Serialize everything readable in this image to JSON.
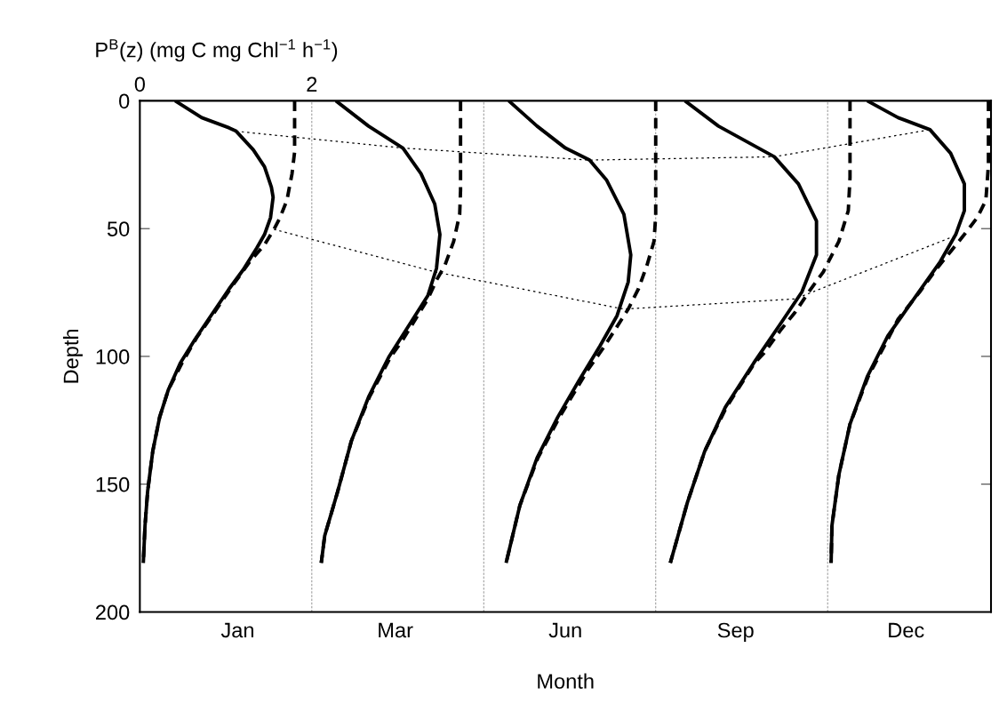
{
  "chart_data": {
    "type": "line",
    "xlabel": "P$^{B}$(z) (mg C mg Chl$^{−1}$ h$^{−1}$)",
    "ylabel": "Depth",
    "annotations": [
      "Jan",
      "Mar",
      "Jun",
      "Sep",
      "Dec",
      "Month"
    ],
    "xlim": [
      0,
      9.9
    ],
    "xticks": [
      0,
      2
    ],
    "ylim": [
      200,
      0
    ],
    "yticks": [
      0,
      50,
      100,
      150,
      200
    ],
    "grid": false,
    "marker": "none",
    "ref_lines": [
      {
        "axis": "x",
        "value": 2,
        "label": null,
        "color": "#808080",
        "line_style": "dashed"
      },
      {
        "axis": "x",
        "value": 4,
        "label": null,
        "color": "#808080",
        "line_style": "dashed"
      },
      {
        "axis": "x",
        "value": 6,
        "label": null,
        "color": "#808080",
        "line_style": "dashed"
      },
      {
        "axis": "x",
        "value": 8,
        "label": null,
        "color": "#808080",
        "line_style": "dashed"
      }
    ],
    "series": [
      {
        "color": "#000000",
        "line_style": "solid",
        "x": [
          0.41,
          0.72,
          1.04,
          1.12,
          1.32,
          1.45,
          1.53,
          1.55,
          1.52,
          1.45,
          1.36,
          1.2,
          1.04,
          0.8,
          0.64,
          0.47,
          0.33,
          0.23,
          0.15,
          0.09,
          0.06,
          0.04
        ],
        "values": [
          0,
          6.6,
          10.6,
          11.9,
          19.2,
          25.8,
          33.8,
          37.7,
          45.7,
          52.3,
          57.6,
          66.2,
          73.5,
          85.4,
          93.4,
          102.6,
          113.2,
          123.8,
          137.1,
          153,
          166.2,
          180.8
        ]
      },
      {
        "color": "#000000",
        "line_style": "dashed",
        "x": [
          1.8,
          1.8,
          1.77,
          1.71,
          1.63,
          1.56,
          1.45,
          1.28,
          1.08,
          0.84,
          0.66,
          0.49,
          0.33,
          0.23,
          0.15,
          0.09,
          0.06,
          0.04
        ],
        "values": [
          0,
          20,
          28.5,
          39,
          45.7,
          50.3,
          56.3,
          62.9,
          72.2,
          84.1,
          92.7,
          102.6,
          113.2,
          123.8,
          137.1,
          153,
          166.2,
          180.8
        ]
      },
      {
        "color": "#000000",
        "line_style": "solid",
        "x": [
          2.28,
          2.66,
          3.06,
          3.27,
          3.43,
          3.49,
          3.45,
          3.35,
          3.15,
          2.9,
          2.66,
          2.46,
          2.3,
          2.15,
          2.11
        ],
        "values": [
          0,
          9.9,
          18.5,
          28.5,
          40.4,
          52.3,
          65.6,
          76.2,
          86.8,
          100,
          115.9,
          133.1,
          153,
          170.2,
          180.8
        ]
      },
      {
        "color": "#000000",
        "line_style": "dashed",
        "x": [
          3.73,
          3.73,
          3.72,
          3.65,
          3.55,
          3.45,
          3.35,
          3.23,
          3.06,
          2.92,
          2.67,
          2.46,
          2.3,
          2.15,
          2.11
        ],
        "values": [
          0,
          35,
          44.4,
          55,
          64.2,
          70.2,
          77.5,
          84.1,
          93.4,
          100,
          115.9,
          133.1,
          153,
          170.2,
          180.8
        ]
      },
      {
        "color": "#000000",
        "line_style": "solid",
        "x": [
          4.29,
          4.62,
          4.95,
          5.23,
          5.43,
          5.63,
          5.71,
          5.68,
          5.55,
          5.35,
          5.11,
          4.86,
          4.62,
          4.42,
          4.26
        ],
        "values": [
          0,
          9.9,
          18.5,
          23.2,
          31.1,
          44.4,
          60.3,
          70.9,
          84.1,
          96,
          109.3,
          123.8,
          139.7,
          158.3,
          180.8
        ]
      },
      {
        "color": "#000000",
        "line_style": "dashed",
        "x": [
          6.0,
          6.0,
          5.98,
          5.9,
          5.8,
          5.68,
          5.53,
          5.39,
          5.21,
          4.88,
          4.63,
          4.42,
          4.26
        ],
        "values": [
          0,
          45,
          55,
          64.2,
          73.5,
          81.5,
          89.4,
          96.7,
          105.3,
          123.8,
          139.7,
          158.3,
          180.8
        ]
      },
      {
        "color": "#000000",
        "line_style": "solid",
        "x": [
          6.34,
          6.73,
          7.38,
          7.66,
          7.87,
          7.87,
          7.7,
          7.46,
          7.14,
          6.81,
          6.57,
          6.37,
          6.17
        ],
        "values": [
          0,
          9.9,
          21.9,
          32.5,
          47,
          60.3,
          74.8,
          86.8,
          102.6,
          119.9,
          137.1,
          157,
          180.8
        ]
      },
      {
        "color": "#000000",
        "line_style": "dashed",
        "x": [
          8.26,
          8.26,
          8.24,
          8.13,
          7.95,
          7.78,
          7.62,
          7.46,
          7.26,
          7.15,
          6.82,
          6.57,
          6.37,
          6.17
        ],
        "values": [
          0,
          30,
          43,
          55,
          66.9,
          74.8,
          82.8,
          89.4,
          98.7,
          102.6,
          120,
          137.1,
          157,
          180.8
        ]
      },
      {
        "color": "#000000",
        "line_style": "solid",
        "x": [
          8.46,
          8.82,
          9.19,
          9.43,
          9.59,
          9.59,
          9.49,
          9.31,
          9.03,
          8.7,
          8.46,
          8.26,
          8.13,
          8.05,
          8.04
        ],
        "values": [
          0,
          6.6,
          11.3,
          20.5,
          32.5,
          43,
          52.3,
          62.9,
          76.2,
          92,
          108,
          126.5,
          146.4,
          166.2,
          180.8
        ]
      },
      {
        "color": "#000000",
        "line_style": "dashed",
        "x": [
          9.87,
          9.87,
          9.84,
          9.74,
          9.59,
          9.43,
          9.27,
          9.07,
          8.82,
          8.72,
          8.47,
          8.26,
          8.13,
          8.05,
          8.04
        ],
        "values": [
          0,
          25,
          39,
          45.7,
          52.3,
          59,
          65.6,
          74.8,
          85.4,
          92,
          108,
          126.5,
          146.4,
          166.2,
          180.8
        ]
      },
      {
        "color": "#000000",
        "line_style": "dotted",
        "x": [
          1.12,
          3.06,
          5.23,
          7.38,
          9.19
        ],
        "values": [
          11.9,
          18.5,
          23.2,
          21.9,
          11.3
        ]
      },
      {
        "color": "#000000",
        "line_style": "dotted",
        "x": [
          1.56,
          3.43,
          5.63,
          7.62,
          9.47
        ],
        "values": [
          50.3,
          66.9,
          81.5,
          77.5,
          53
        ]
      }
    ]
  }
}
